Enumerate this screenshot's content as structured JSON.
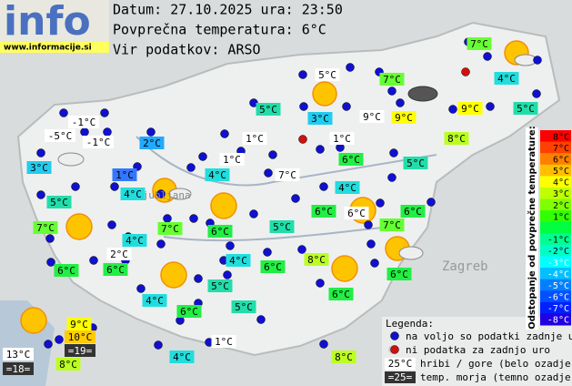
{
  "header": {
    "logo": "info",
    "url": "www.informacije.si",
    "lines": [
      "Datum: 27.10.2025 ura: 23:50",
      "Povprečna temperatura: 6°C",
      "Vir podatkov: ARSO"
    ]
  },
  "map_labels": [
    "Ljubljana",
    "Zagreb"
  ],
  "stations": [
    {
      "label": "7°C",
      "color": "#66ff33"
    },
    {
      "label": "7°C",
      "color": "#66ff33"
    },
    {
      "label": "4°C",
      "color": "#22dddd"
    },
    {
      "label": "5°C",
      "color": "#22ddaa"
    },
    {
      "label": "3°C",
      "color": "#22ccee"
    },
    {
      "label": "9°C",
      "color": "#ffff00"
    },
    {
      "label": "9°C",
      "color": "#ffff00"
    },
    {
      "label": "5°C",
      "color": "#22ddaa"
    },
    {
      "label": "2°C",
      "color": "#22aaff"
    },
    {
      "label": "8°C",
      "color": "#bbff22"
    },
    {
      "label": "3°C",
      "color": "#22ccee"
    },
    {
      "label": "6°C",
      "color": "#22ee44"
    },
    {
      "label": "5°C",
      "color": "#22ddaa"
    },
    {
      "label": "1°C",
      "color": "#3377ff"
    },
    {
      "label": "4°C",
      "color": "#22dddd"
    },
    {
      "label": "4°C",
      "color": "#22dddd"
    },
    {
      "label": "4°C",
      "color": "#22dddd"
    },
    {
      "label": "5°C",
      "color": "#22ddaa"
    },
    {
      "label": "6°C",
      "color": "#22ee44"
    },
    {
      "label": "7°C",
      "color": "#66ff33"
    },
    {
      "label": "6°C",
      "color": "#22ee44"
    },
    {
      "label": "7°C",
      "color": "#66ff33"
    },
    {
      "label": "7°C",
      "color": "#66ff33"
    },
    {
      "label": "6°C",
      "color": "#22ee44"
    },
    {
      "label": "5°C",
      "color": "#22ddaa"
    },
    {
      "label": "4°C",
      "color": "#22dddd"
    },
    {
      "label": "4°C",
      "color": "#22dddd"
    },
    {
      "label": "8°C",
      "color": "#bbff22"
    },
    {
      "label": "6°C",
      "color": "#22ee44"
    },
    {
      "label": "6°C",
      "color": "#22ee44"
    },
    {
      "label": "6°C",
      "color": "#22ee44"
    },
    {
      "label": "6°C",
      "color": "#22ee44"
    },
    {
      "label": "5°C",
      "color": "#22ddaa"
    },
    {
      "label": "4°C",
      "color": "#22dddd"
    },
    {
      "label": "6°C",
      "color": "#22ee44"
    },
    {
      "label": "5°C",
      "color": "#22ddaa"
    },
    {
      "label": "6°C",
      "color": "#22ee44"
    },
    {
      "label": "4°C",
      "color": "#22dddd"
    },
    {
      "label": "8°C",
      "color": "#bbff22"
    },
    {
      "label": "9°C",
      "color": "#ffff00"
    },
    {
      "label": "10°C",
      "color": "#ffcc00"
    },
    {
      "label": "8°C",
      "color": "#bbff22"
    }
  ],
  "hill_stations": [
    "5°C",
    "-1°C",
    "-5°C",
    "-1°C",
    "9°C",
    "1°C",
    "1°C",
    "1°C",
    "7°C",
    "6°C",
    "2°C",
    "1°C",
    "13°C"
  ],
  "sea_stations": [
    "=19=",
    "=18="
  ],
  "legend": {
    "title": "Legenda:",
    "items": [
      {
        "text": "na voljo so podatki zadnje ure",
        "color": "#1010d0"
      },
      {
        "text": "ni podatka za zadnjo uro",
        "color": "#d01010"
      }
    ],
    "hill": {
      "sample": "25°C",
      "text": "hribi / gore (belo ozadje)"
    },
    "sea": {
      "sample": "=25=",
      "text": "temp. morja (temno ozadje)"
    }
  },
  "scale": {
    "title": "Odstopanje od povprečne temperature:",
    "steps": [
      {
        "label": "8°C",
        "color": "#ff0000"
      },
      {
        "label": "7°C",
        "color": "#ff4000"
      },
      {
        "label": "6°C",
        "color": "#ff8000"
      },
      {
        "label": "5°C",
        "color": "#ffbf00"
      },
      {
        "label": "4°C",
        "color": "#ffff00"
      },
      {
        "label": "3°C",
        "color": "#c0ff00"
      },
      {
        "label": "2°C",
        "color": "#80ff00"
      },
      {
        "label": "1°C",
        "color": "#30ff00"
      },
      {
        "label": null,
        "color": "#00ff40"
      },
      {
        "label": "-1°C",
        "color": "#00ff90"
      },
      {
        "label": "-2°C",
        "color": "#00ffc8"
      },
      {
        "label": "-3°C",
        "color": "#00ffff"
      },
      {
        "label": "-4°C",
        "color": "#00c0ff"
      },
      {
        "label": "-5°C",
        "color": "#0080ff"
      },
      {
        "label": "-6°C",
        "color": "#0050ff"
      },
      {
        "label": "-7°C",
        "color": "#0020ff"
      },
      {
        "label": "-8°C",
        "color": "#2000e0"
      }
    ]
  }
}
